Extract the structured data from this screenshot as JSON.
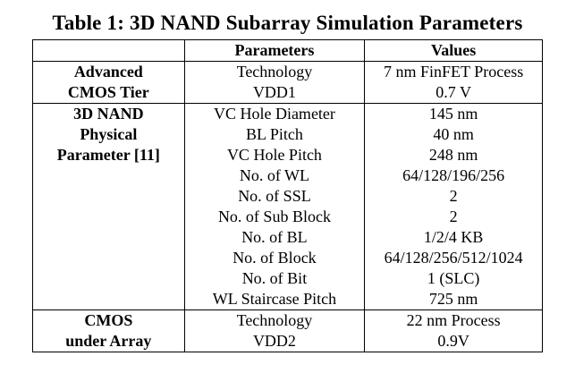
{
  "caption": "Table 1: 3D NAND Subarray Simulation Parameters",
  "table": {
    "headers": [
      "",
      "Parameters",
      "Values"
    ],
    "groups": [
      {
        "label_lines": [
          "Advanced",
          "CMOS Tier"
        ],
        "rows": [
          {
            "param": "Technology",
            "value": "7 nm FinFET Process"
          },
          {
            "param": "VDD1",
            "value": "0.7 V"
          }
        ]
      },
      {
        "label_lines": [
          "3D NAND",
          "Physical",
          "Parameter [11]"
        ],
        "rows": [
          {
            "param": "VC Hole Diameter",
            "value": "145 nm"
          },
          {
            "param": "BL Pitch",
            "value": "40 nm"
          },
          {
            "param": "VC Hole Pitch",
            "value": "248 nm"
          },
          {
            "param": "No. of WL",
            "value": "64/128/196/256"
          },
          {
            "param": "No. of SSL",
            "value": "2"
          },
          {
            "param": "No. of Sub Block",
            "value": "2"
          },
          {
            "param": "No. of BL",
            "value": "1/2/4 KB"
          },
          {
            "param": "No. of Block",
            "value": "64/128/256/512/1024"
          },
          {
            "param": "No. of Bit",
            "value": "1 (SLC)"
          },
          {
            "param": "WL Staircase Pitch",
            "value": "725 nm"
          }
        ]
      },
      {
        "label_lines": [
          "CMOS",
          "under Array"
        ],
        "rows": [
          {
            "param": "Technology",
            "value": "22 nm Process"
          },
          {
            "param": "VDD2",
            "value": "0.9V"
          }
        ]
      }
    ]
  }
}
